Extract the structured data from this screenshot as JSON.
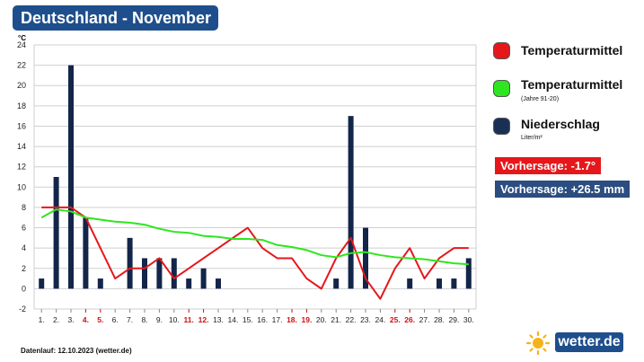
{
  "header": {
    "title": "Deutschland - November"
  },
  "legend": {
    "items": [
      {
        "label": "Temperaturmittel",
        "sub": "",
        "color": "#e5171b"
      },
      {
        "label": "Temperaturmittel",
        "sub": "(Jahre 91-20)",
        "color": "#2ee61f"
      },
      {
        "label": "Niederschlag",
        "sub": "Liter/m²",
        "color": "#1a2f55"
      }
    ]
  },
  "forecast": {
    "temp": "Vorhersage: -1.7°",
    "temp_color": "#e5171b",
    "precip": "Vorhersage: +26.5 mm",
    "precip_color": "#2b4d80"
  },
  "footer": {
    "text": "Datenlauf: 12.10.2023 (wetter.de)"
  },
  "logo": {
    "text": "wetter.de",
    "icon": "sun-icon"
  },
  "chart_data": {
    "type": "bar",
    "y_unit": "°C",
    "ylim": [
      -2,
      24
    ],
    "y_ticks": [
      -2,
      0,
      2,
      4,
      6,
      8,
      10,
      12,
      14,
      16,
      18,
      20,
      22,
      24
    ],
    "grid": true,
    "categories": [
      "1.",
      "2.",
      "3.",
      "4.",
      "5.",
      "6.",
      "7.",
      "8.",
      "9.",
      "10.",
      "11.",
      "12.",
      "13.",
      "14.",
      "15.",
      "16.",
      "17.",
      "18.",
      "19.",
      "20.",
      "21.",
      "22.",
      "23.",
      "24.",
      "25.",
      "26.",
      "27.",
      "28.",
      "29.",
      "30."
    ],
    "weekend_days": [
      "4.",
      "5.",
      "11.",
      "12.",
      "18.",
      "19.",
      "25.",
      "26."
    ],
    "weekend_color": "#cc1111",
    "series": [
      {
        "name": "Niederschlag",
        "type": "bar",
        "color": "#13264a",
        "values": [
          1,
          11,
          22,
          7,
          1,
          0,
          5,
          3,
          3,
          3,
          1,
          2,
          1,
          0,
          0,
          0,
          0,
          0,
          0,
          0,
          1,
          17,
          6,
          0,
          0,
          1,
          0,
          1,
          1,
          3
        ]
      },
      {
        "name": "Temperaturmittel",
        "type": "line",
        "color": "#e5171b",
        "values": [
          8,
          8,
          8,
          7,
          4,
          1,
          2,
          2,
          3,
          1,
          2,
          3,
          4,
          5,
          6,
          4,
          3,
          3,
          1,
          0,
          3,
          5,
          1,
          -1,
          2,
          4,
          1,
          3,
          4,
          4
        ]
      },
      {
        "name": "Temperaturmittel (Jahre 91-20)",
        "type": "line",
        "color": "#2ee61f",
        "values": [
          7,
          7.8,
          7.6,
          7,
          6.8,
          6.6,
          6.5,
          6.3,
          5.9,
          5.6,
          5.5,
          5.2,
          5.1,
          4.9,
          4.9,
          4.8,
          4.3,
          4.1,
          3.8,
          3.3,
          3.1,
          3.5,
          3.6,
          3.3,
          3.1,
          3,
          2.9,
          2.7,
          2.5,
          2.4
        ]
      }
    ]
  }
}
